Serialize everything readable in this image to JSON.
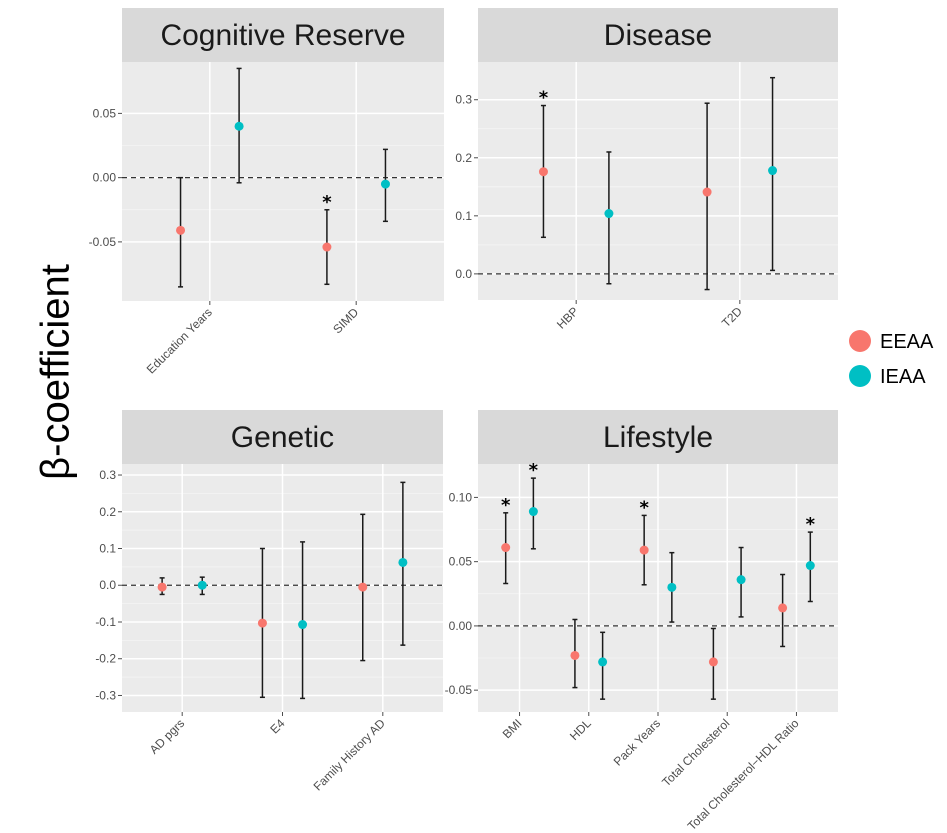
{
  "y_axis_title": "β-coefficient",
  "legend": [
    {
      "label": "EEAA",
      "color": "#F8766D"
    },
    {
      "label": "IEAA",
      "color": "#00BFC4"
    }
  ],
  "chart_data": [
    {
      "type": "scatter",
      "title": "Cognitive Reserve",
      "categories": [
        "Education Years",
        "SIMD"
      ],
      "ylim": [
        -0.096,
        0.09
      ],
      "yticks": [
        -0.05,
        0.0,
        0.05
      ],
      "yticklabels": [
        "-0.05",
        "0.00",
        "0.05"
      ],
      "series": [
        {
          "name": "EEAA",
          "values": [
            -0.041,
            -0.054
          ],
          "lower": [
            -0.085,
            -0.083
          ],
          "upper": [
            0.0,
            -0.025
          ],
          "significant": [
            false,
            true
          ]
        },
        {
          "name": "IEAA",
          "values": [
            0.04,
            -0.005
          ],
          "lower": [
            -0.004,
            -0.034
          ],
          "upper": [
            0.085,
            0.022
          ],
          "significant": [
            false,
            false
          ]
        }
      ]
    },
    {
      "type": "scatter",
      "title": "Disease",
      "categories": [
        "HBP",
        "T2D"
      ],
      "ylim": [
        -0.045,
        0.365
      ],
      "yticks": [
        0.0,
        0.1,
        0.2,
        0.3
      ],
      "yticklabels": [
        "0.0",
        "0.1",
        "0.2",
        "0.3"
      ],
      "series": [
        {
          "name": "EEAA",
          "values": [
            0.176,
            0.141
          ],
          "lower": [
            0.063,
            -0.027
          ],
          "upper": [
            0.29,
            0.294
          ],
          "significant": [
            true,
            false
          ]
        },
        {
          "name": "IEAA",
          "values": [
            0.104,
            0.178
          ],
          "lower": [
            -0.017,
            0.006
          ],
          "upper": [
            0.21,
            0.338
          ],
          "significant": [
            false,
            false
          ]
        }
      ]
    },
    {
      "type": "scatter",
      "title": "Genetic",
      "categories": [
        "AD pgrs",
        "E4",
        "Family History AD"
      ],
      "ylim": [
        -0.345,
        0.33
      ],
      "yticks": [
        -0.3,
        -0.2,
        -0.1,
        0.0,
        0.1,
        0.2,
        0.3
      ],
      "yticklabels": [
        "-0.3",
        "-0.2",
        "-0.1",
        "0.0",
        "0.1",
        "0.2",
        "0.3"
      ],
      "series": [
        {
          "name": "EEAA",
          "values": [
            -0.005,
            -0.103,
            -0.005
          ],
          "lower": [
            -0.025,
            -0.305,
            -0.205
          ],
          "upper": [
            0.02,
            0.1,
            0.193
          ],
          "significant": [
            false,
            false,
            false
          ]
        },
        {
          "name": "IEAA",
          "values": [
            0.0,
            -0.107,
            0.062
          ],
          "lower": [
            -0.025,
            -0.308,
            -0.163
          ],
          "upper": [
            0.022,
            0.118,
            0.28
          ],
          "significant": [
            false,
            false,
            false
          ]
        }
      ]
    },
    {
      "type": "scatter",
      "title": "Lifestyle",
      "categories": [
        "BMI",
        "HDL",
        "Pack Years",
        "Total Cholesterol",
        "Total Cholesterol−HDL Ratio"
      ],
      "ylim": [
        -0.067,
        0.126
      ],
      "yticks": [
        -0.05,
        0.0,
        0.05,
        0.1
      ],
      "yticklabels": [
        "-0.05",
        "0.00",
        "0.05",
        "0.10"
      ],
      "series": [
        {
          "name": "EEAA",
          "values": [
            0.061,
            -0.023,
            0.059,
            -0.028,
            0.014
          ],
          "lower": [
            0.033,
            -0.048,
            0.032,
            -0.057,
            -0.016
          ],
          "upper": [
            0.088,
            0.005,
            0.086,
            -0.002,
            0.04
          ],
          "significant": [
            true,
            false,
            true,
            false,
            false
          ]
        },
        {
          "name": "IEAA",
          "values": [
            0.089,
            -0.028,
            0.03,
            0.036,
            0.047
          ],
          "lower": [
            0.06,
            -0.057,
            0.003,
            0.007,
            0.019
          ],
          "upper": [
            0.115,
            -0.005,
            0.057,
            0.061,
            0.073
          ],
          "significant": [
            true,
            false,
            false,
            false,
            true
          ]
        }
      ]
    }
  ]
}
